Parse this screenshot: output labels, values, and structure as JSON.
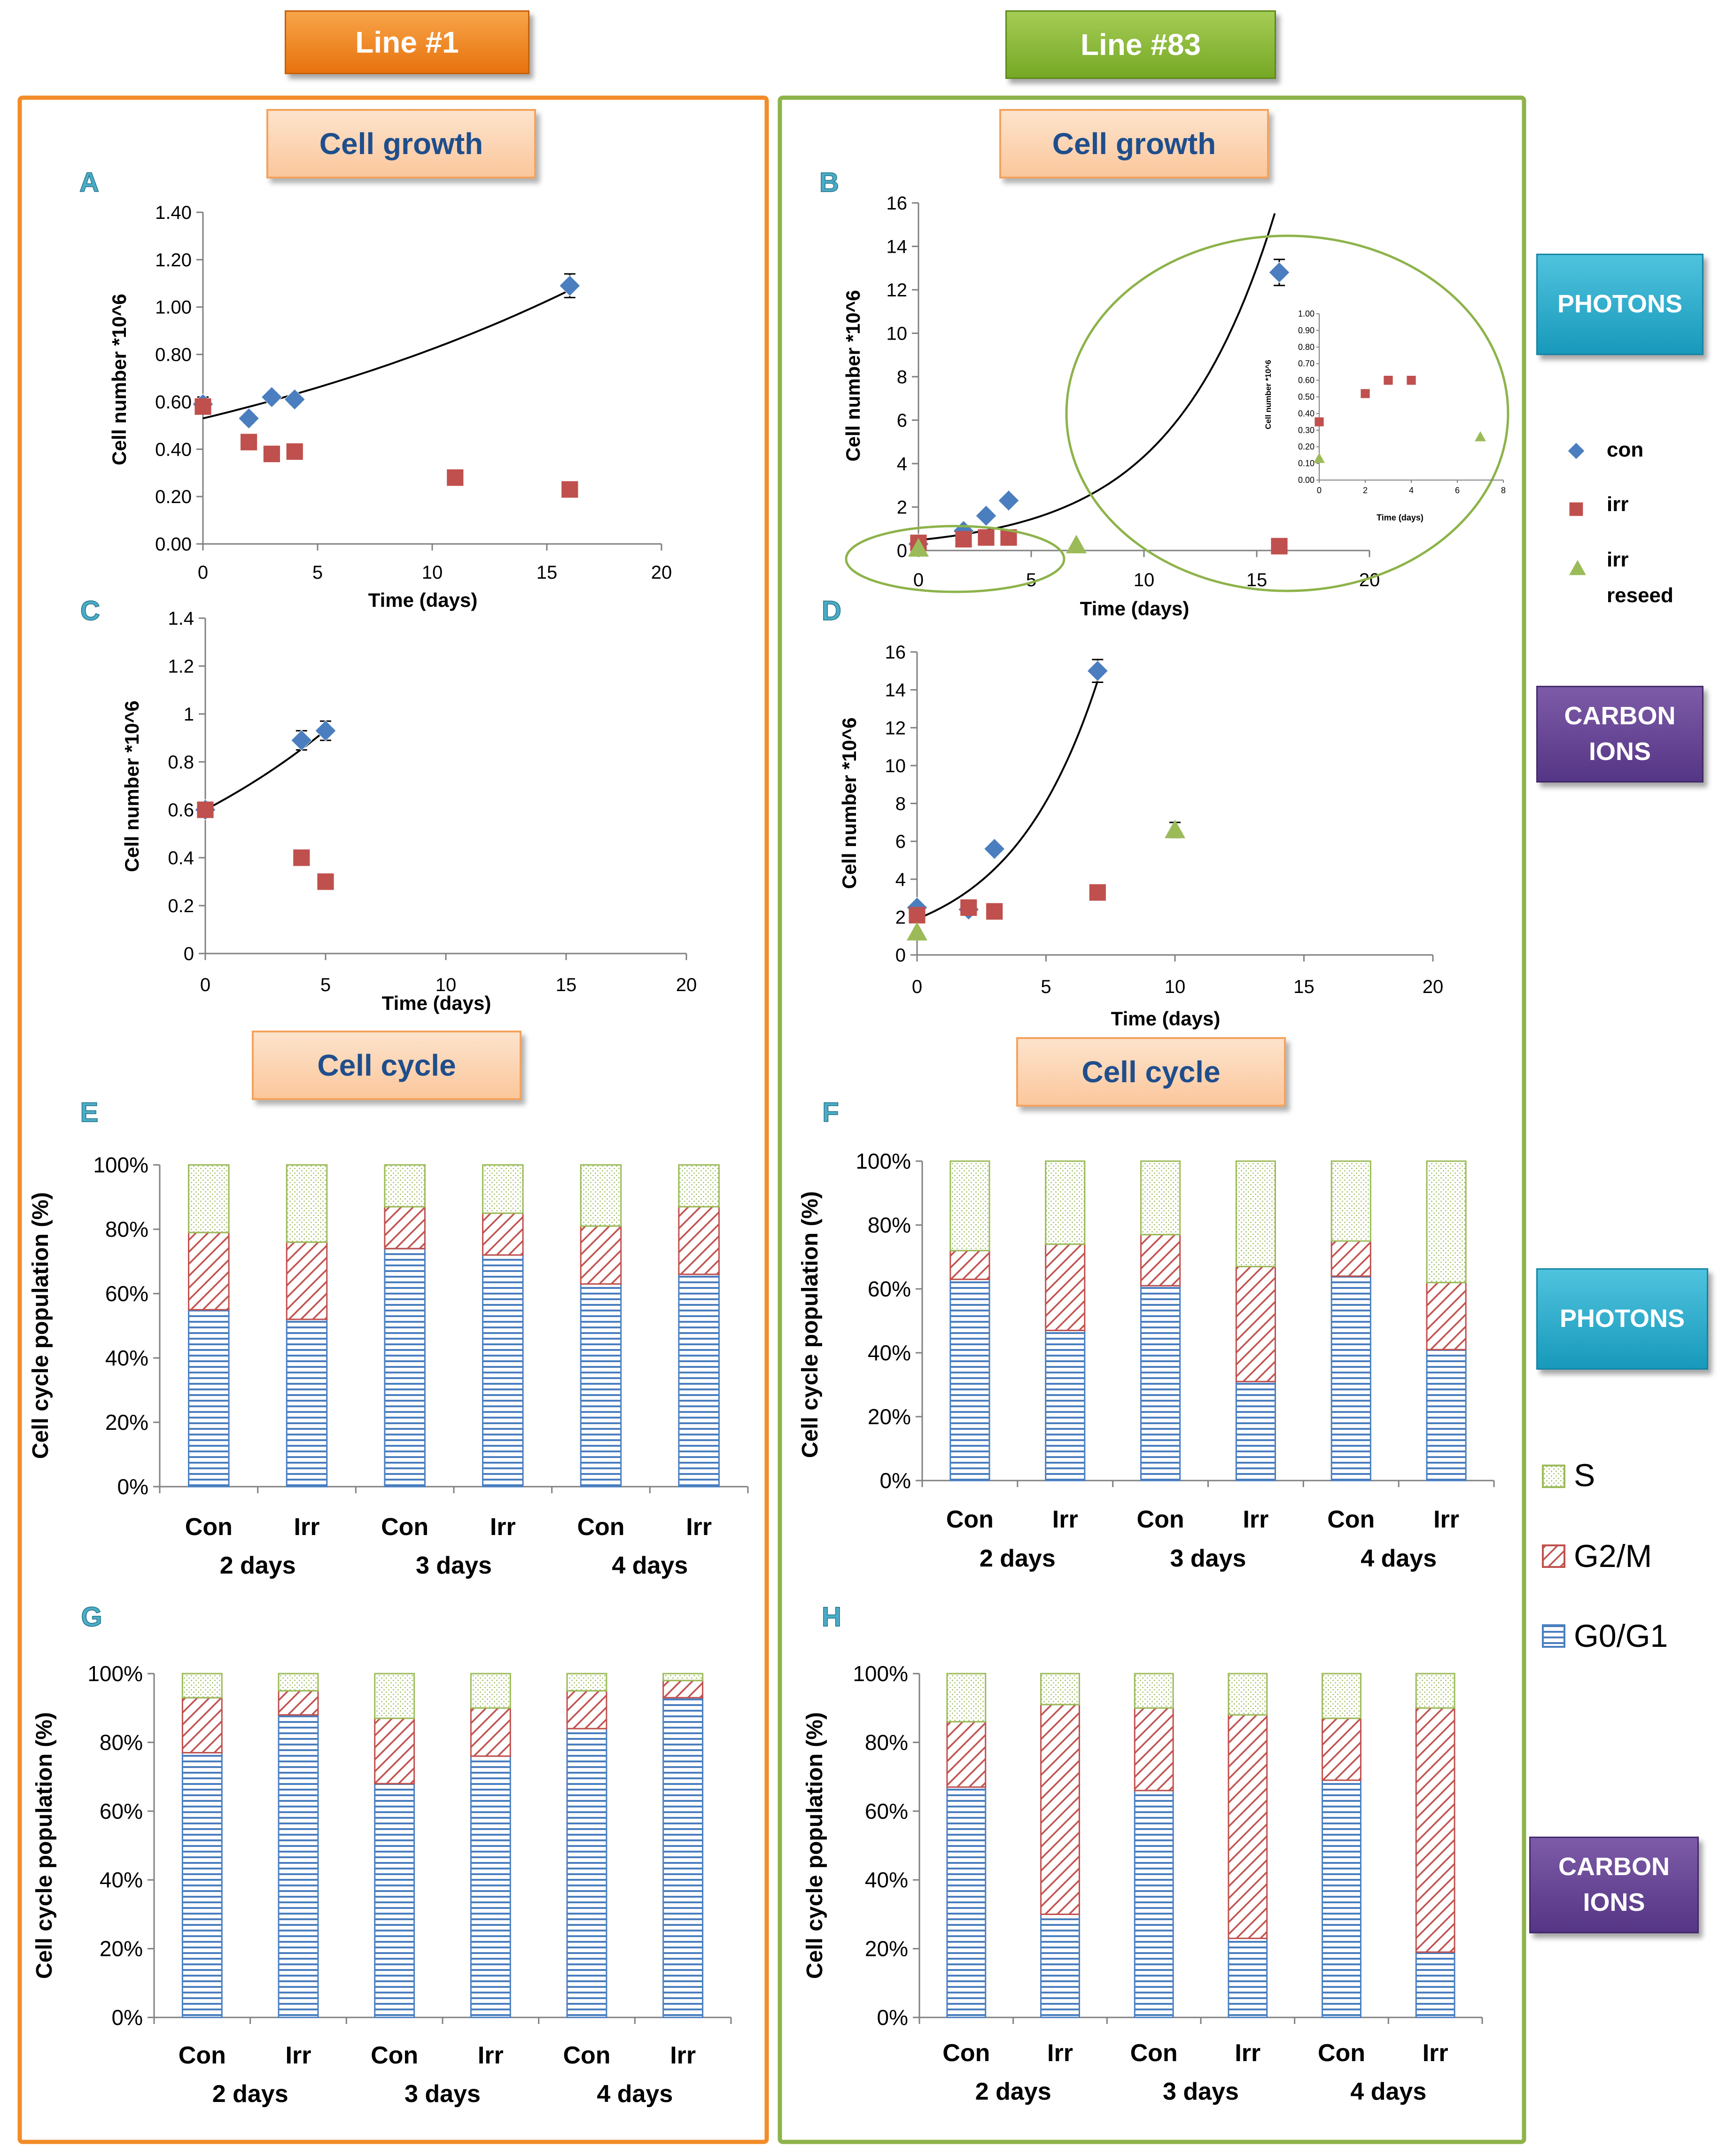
{
  "headers": {
    "line1": "Line #1",
    "line83": "Line #83"
  },
  "side_labels": {
    "photons_top": "PHOTONS",
    "carbon_top": "CARBON IONS",
    "photons_bottom": "PHOTONS",
    "carbon_bottom": "CARBON IONS"
  },
  "sections": {
    "cell_growth_left": "Cell growth",
    "cell_growth_right": "Cell growth",
    "cell_cycle_left": "Cell cycle",
    "cell_cycle_right": "Cell cycle"
  },
  "legend_growth": {
    "con": "con",
    "irr": "irr",
    "irr_reseed_1": "irr",
    "irr_reseed_2": "reseed"
  },
  "legend_cycle": {
    "s": "S",
    "g2m": "G2/M",
    "g0g1": "G0/G1"
  },
  "colors": {
    "orange_frame": "#f28c28",
    "green_frame": "#8db34a",
    "con": "#4a7ebf",
    "irr": "#c0504d",
    "reseed": "#9bbb59",
    "g0g1": "#4a7ebf",
    "g2m": "#c0504d",
    "s": "#9bbb59",
    "panel_letter": "#4bacc6"
  },
  "chart_data": [
    {
      "id": "A",
      "type": "scatter",
      "xlabel": "Time (days)",
      "ylabel": "Cell number *10^6",
      "xlim": [
        0,
        20
      ],
      "ylim": [
        0,
        1.4
      ],
      "xticks": [
        0,
        5,
        10,
        15,
        20
      ],
      "yticks": [
        0,
        0.2,
        0.4,
        0.6,
        0.8,
        1.0,
        1.2,
        1.4
      ],
      "ydecimals": 2,
      "series": [
        {
          "name": "con",
          "marker": "diamond",
          "x": [
            0,
            2,
            3,
            4,
            16
          ],
          "y": [
            0.59,
            0.53,
            0.62,
            0.61,
            1.09
          ],
          "err": [
            0.03,
            0.02,
            0.02,
            0.02,
            0.05
          ]
        },
        {
          "name": "irr",
          "marker": "square",
          "x": [
            0,
            2,
            3,
            4,
            11,
            16
          ],
          "y": [
            0.58,
            0.43,
            0.38,
            0.39,
            0.28,
            0.23
          ]
        }
      ],
      "trend": {
        "type": "exp",
        "a": 0.53,
        "b": 0.044,
        "x0": 0,
        "x1": 16
      }
    },
    {
      "id": "B",
      "type": "scatter",
      "xlabel": "Time (days)",
      "ylabel": "Cell number *10^6",
      "xlim": [
        0,
        20
      ],
      "ylim": [
        0,
        16
      ],
      "xticks": [
        0,
        5,
        10,
        15,
        20
      ],
      "yticks": [
        0,
        2,
        4,
        6,
        8,
        10,
        12,
        14,
        16
      ],
      "ydecimals": 0,
      "series": [
        {
          "name": "con",
          "marker": "diamond",
          "x": [
            0,
            2,
            3,
            4,
            16
          ],
          "y": [
            0.3,
            0.9,
            1.6,
            2.3,
            12.8
          ],
          "err": [
            0,
            0,
            0,
            0,
            0.6
          ]
        },
        {
          "name": "irr",
          "marker": "square",
          "x": [
            0,
            2,
            3,
            4,
            16
          ],
          "y": [
            0.35,
            0.52,
            0.6,
            0.6,
            0.2
          ]
        },
        {
          "name": "irr reseed",
          "marker": "triangle",
          "x": [
            0,
            7
          ],
          "y": [
            0.1,
            0.25
          ]
        }
      ],
      "trend": {
        "type": "exp",
        "a": 0.48,
        "b": 0.22,
        "x0": 0,
        "x1": 15.8
      },
      "inset": {
        "xlabel": "Time (days)",
        "ylabel": "Cell number *10^6",
        "xlim": [
          0,
          8
        ],
        "ylim": [
          0,
          1.0
        ],
        "xticks": [
          0,
          2,
          4,
          6,
          8
        ],
        "yticks": [
          0.0,
          0.1,
          0.2,
          0.3,
          0.4,
          0.5,
          0.6,
          0.7,
          0.8,
          0.9,
          1.0
        ],
        "series": [
          {
            "name": "irr",
            "marker": "square",
            "x": [
              0,
              2,
              3,
              4
            ],
            "y": [
              0.35,
              0.52,
              0.6,
              0.6
            ]
          },
          {
            "name": "irr reseed",
            "marker": "triangle",
            "x": [
              0,
              7
            ],
            "y": [
              0.13,
              0.26
            ]
          }
        ]
      }
    },
    {
      "id": "C",
      "type": "scatter",
      "xlabel": "Time (days)",
      "ylabel": "Cell number *10^6",
      "xlim": [
        0,
        20
      ],
      "ylim": [
        0,
        1.4
      ],
      "xticks": [
        0,
        5,
        10,
        15,
        20
      ],
      "yticks": [
        0,
        0.2,
        0.4,
        0.6,
        0.8,
        1,
        1.2,
        1.4
      ],
      "ydecimals": -1,
      "series": [
        {
          "name": "con",
          "marker": "diamond",
          "x": [
            0,
            4,
            5
          ],
          "y": [
            0.6,
            0.89,
            0.93
          ],
          "err": [
            0.02,
            0.04,
            0.04
          ]
        },
        {
          "name": "irr",
          "marker": "square",
          "x": [
            0,
            4,
            5
          ],
          "y": [
            0.6,
            0.4,
            0.3
          ]
        }
      ],
      "trend": {
        "type": "exp",
        "a": 0.6,
        "b": 0.088,
        "x0": 0,
        "x1": 5
      }
    },
    {
      "id": "D",
      "type": "scatter",
      "xlabel": "Time (days)",
      "ylabel": "Cell number *10^6",
      "xlim": [
        0,
        20
      ],
      "ylim": [
        0,
        16
      ],
      "xticks": [
        0,
        5,
        10,
        15,
        20
      ],
      "yticks": [
        0,
        2,
        4,
        6,
        8,
        10,
        12,
        14,
        16
      ],
      "ydecimals": 0,
      "series": [
        {
          "name": "con",
          "marker": "diamond",
          "x": [
            0,
            2,
            3,
            7
          ],
          "y": [
            2.5,
            2.4,
            5.6,
            15.0
          ],
          "err": [
            0,
            0,
            0,
            0.6
          ]
        },
        {
          "name": "irr",
          "marker": "square",
          "x": [
            0,
            2,
            3,
            7
          ],
          "y": [
            2.1,
            2.5,
            2.3,
            3.3
          ]
        },
        {
          "name": "irr reseed",
          "marker": "triangle",
          "x": [
            0,
            10
          ],
          "y": [
            1.2,
            6.6
          ],
          "err": [
            0,
            0.4
          ]
        }
      ],
      "trend": {
        "type": "exp",
        "a": 1.9,
        "b": 0.29,
        "x0": 0,
        "x1": 7
      }
    },
    {
      "id": "E",
      "type": "bar",
      "ylabel": "Cell cycle population (%)",
      "categories": [
        "Con",
        "Irr",
        "Con",
        "Irr",
        "Con",
        "Irr"
      ],
      "groups": [
        "2 days",
        "3 days",
        "4 days"
      ],
      "yticks": [
        "0%",
        "20%",
        "40%",
        "60%",
        "80%",
        "100%"
      ],
      "series": [
        {
          "name": "G0/G1",
          "values": [
            55,
            52,
            74,
            72,
            63,
            66
          ]
        },
        {
          "name": "G2/M",
          "values": [
            24,
            24,
            13,
            13,
            18,
            21
          ]
        },
        {
          "name": "S",
          "values": [
            21,
            24,
            13,
            15,
            19,
            13
          ]
        }
      ]
    },
    {
      "id": "F",
      "type": "bar",
      "ylabel": "Cell cycle population (%)",
      "categories": [
        "Con",
        "Irr",
        "Con",
        "Irr",
        "Con",
        "Irr"
      ],
      "groups": [
        "2 days",
        "3 days",
        "4 days"
      ],
      "yticks": [
        "0%",
        "20%",
        "40%",
        "60%",
        "80%",
        "100%"
      ],
      "series": [
        {
          "name": "G0/G1",
          "values": [
            63,
            47,
            61,
            31,
            64,
            41
          ]
        },
        {
          "name": "G2/M",
          "values": [
            9,
            27,
            16,
            36,
            11,
            21
          ]
        },
        {
          "name": "S",
          "values": [
            28,
            26,
            23,
            33,
            25,
            38
          ]
        }
      ]
    },
    {
      "id": "G",
      "type": "bar",
      "ylabel": "Cell cycle population (%)",
      "categories": [
        "Con",
        "Irr",
        "Con",
        "Irr",
        "Con",
        "Irr"
      ],
      "groups": [
        "2 days",
        "3 days",
        "4 days"
      ],
      "yticks": [
        "0%",
        "20%",
        "40%",
        "60%",
        "80%",
        "100%"
      ],
      "series": [
        {
          "name": "G0/G1",
          "values": [
            77,
            88,
            68,
            76,
            84,
            93
          ]
        },
        {
          "name": "G2/M",
          "values": [
            16,
            7,
            19,
            14,
            11,
            5
          ]
        },
        {
          "name": "S",
          "values": [
            7,
            5,
            13,
            10,
            5,
            2
          ]
        }
      ]
    },
    {
      "id": "H",
      "type": "bar",
      "ylabel": "Cell cycle population (%)",
      "categories": [
        "Con",
        "Irr",
        "Con",
        "Irr",
        "Con",
        "Irr"
      ],
      "groups": [
        "2 days",
        "3 days",
        "4 days"
      ],
      "yticks": [
        "0%",
        "20%",
        "40%",
        "60%",
        "80%",
        "100%"
      ],
      "series": [
        {
          "name": "G0/G1",
          "values": [
            67,
            30,
            66,
            23,
            69,
            19
          ]
        },
        {
          "name": "G2/M",
          "values": [
            19,
            61,
            24,
            65,
            18,
            71
          ]
        },
        {
          "name": "S",
          "values": [
            14,
            9,
            10,
            12,
            13,
            10
          ]
        }
      ]
    }
  ]
}
